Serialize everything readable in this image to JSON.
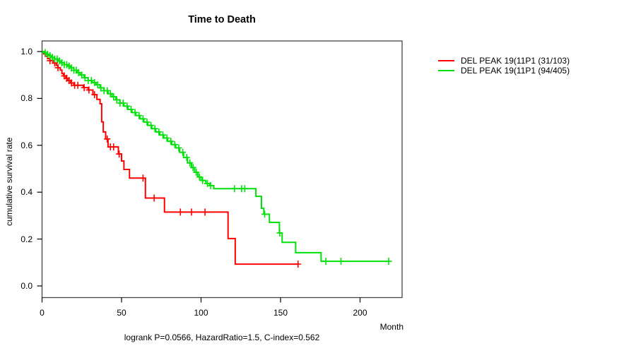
{
  "title": "Time to Death",
  "x_axis": {
    "label": "Month",
    "tick_labels": [
      "0",
      "50",
      "100",
      "150",
      "200"
    ],
    "tick_values": [
      0,
      50,
      100,
      150,
      200
    ]
  },
  "y_axis": {
    "label": "cumulative survival rate",
    "tick_labels": [
      "1.0",
      "0.8",
      "0.6",
      "0.4",
      "0.2",
      "0.0"
    ],
    "tick_values": [
      1.0,
      0.8,
      0.6,
      0.4,
      0.2,
      0.0
    ]
  },
  "annotation": "logrank P=0.0566, HazardRatio=1.5, C-index=0.562",
  "legend": {
    "items": [
      {
        "label": "DEL PEAK 19(11P1 (31/103)",
        "color": "#ff0000"
      },
      {
        "label": "DEL PEAK 19(11P1 (94/405)",
        "color": "#00e10b"
      }
    ]
  },
  "chart_data": {
    "type": "line",
    "subtype": "kaplan-meier-step",
    "title": "Time to Death",
    "xlabel": "Month",
    "ylabel": "cumulative survival rate",
    "xlim": [
      0,
      226.5
    ],
    "ylim": [
      0,
      1.0
    ],
    "grid": false,
    "legend_position": "right-outside",
    "annotation": "logrank P=0.0566, HazardRatio=1.5, C-index=0.562",
    "series": [
      {
        "name": "DEL PEAK 19(11P1 (31/103)",
        "color": "#ff0000",
        "events_total": "31/103",
        "steps": [
          [
            0,
            1.0
          ],
          [
            1,
            0.99
          ],
          [
            2,
            0.98
          ],
          [
            3.5,
            0.97
          ],
          [
            5,
            0.961
          ],
          [
            7,
            0.951
          ],
          [
            9,
            0.941
          ],
          [
            10,
            0.931
          ],
          [
            11.5,
            0.921
          ],
          [
            12.5,
            0.906
          ],
          [
            13.5,
            0.896
          ],
          [
            15,
            0.886
          ],
          [
            16,
            0.876
          ],
          [
            18,
            0.866
          ],
          [
            20,
            0.856
          ],
          [
            26,
            0.846
          ],
          [
            29,
            0.836
          ],
          [
            32,
            0.816
          ],
          [
            34.5,
            0.796
          ],
          [
            36.5,
            0.777
          ],
          [
            37.5,
            0.7
          ],
          [
            38.5,
            0.657
          ],
          [
            40,
            0.627
          ],
          [
            41.5,
            0.593
          ],
          [
            48,
            0.563
          ],
          [
            50,
            0.533
          ],
          [
            51.5,
            0.497
          ],
          [
            55,
            0.46
          ],
          [
            65,
            0.375
          ],
          [
            77,
            0.315
          ],
          [
            117,
            0.202
          ],
          [
            121.5,
            0.093
          ]
        ],
        "end_time": 161.5,
        "censor_times": [
          5,
          8,
          10,
          14,
          15.5,
          17,
          18.5,
          20.5,
          22.5,
          26.5,
          29.5,
          33,
          41,
          43,
          45,
          48.5,
          63.5,
          70.5,
          87,
          94,
          102.5,
          161
        ]
      },
      {
        "name": "DEL PEAK 19(11P1 (94/405)",
        "color": "#00e10b",
        "events_total": "94/405",
        "steps": [
          [
            0,
            1.0
          ],
          [
            1.5,
            0.995
          ],
          [
            3,
            0.988
          ],
          [
            4.5,
            0.982
          ],
          [
            6,
            0.975
          ],
          [
            8,
            0.968
          ],
          [
            10,
            0.96
          ],
          [
            12,
            0.952
          ],
          [
            14,
            0.944
          ],
          [
            16,
            0.938
          ],
          [
            18,
            0.93
          ],
          [
            20,
            0.92
          ],
          [
            22,
            0.91
          ],
          [
            24,
            0.9
          ],
          [
            26.5,
            0.888
          ],
          [
            29,
            0.876
          ],
          [
            31.5,
            0.868
          ],
          [
            34,
            0.858
          ],
          [
            36.5,
            0.845
          ],
          [
            39,
            0.833
          ],
          [
            41.5,
            0.82
          ],
          [
            44,
            0.807
          ],
          [
            46.5,
            0.794
          ],
          [
            49,
            0.78
          ],
          [
            51.5,
            0.767
          ],
          [
            54,
            0.753
          ],
          [
            56.5,
            0.74
          ],
          [
            59,
            0.727
          ],
          [
            61.5,
            0.713
          ],
          [
            64,
            0.699
          ],
          [
            66.5,
            0.685
          ],
          [
            69,
            0.671
          ],
          [
            71.5,
            0.657
          ],
          [
            74,
            0.644
          ],
          [
            76.5,
            0.631
          ],
          [
            79,
            0.617
          ],
          [
            81.5,
            0.603
          ],
          [
            84,
            0.589
          ],
          [
            86.5,
            0.57
          ],
          [
            89,
            0.548
          ],
          [
            91.5,
            0.525
          ],
          [
            94,
            0.505
          ],
          [
            96,
            0.485
          ],
          [
            98,
            0.465
          ],
          [
            100,
            0.45
          ],
          [
            103,
            0.437
          ],
          [
            105.5,
            0.428
          ],
          [
            108,
            0.415
          ],
          [
            134.5,
            0.382
          ],
          [
            138,
            0.331
          ],
          [
            139.5,
            0.306
          ],
          [
            143,
            0.271
          ],
          [
            149.3,
            0.226
          ],
          [
            151,
            0.186
          ],
          [
            159.5,
            0.142
          ],
          [
            175.5,
            0.105
          ]
        ],
        "end_time": 218.5,
        "censor_times": [
          2,
          3.5,
          5,
          6.5,
          8,
          9.5,
          11,
          12.5,
          14,
          15.5,
          17,
          18.5,
          20,
          21.5,
          23,
          25,
          27,
          29,
          31,
          33,
          35,
          37,
          39,
          41,
          43,
          45,
          47,
          49,
          51,
          53.5,
          56,
          58.5,
          61,
          63.5,
          66,
          68.5,
          71,
          73.5,
          76,
          78.5,
          81,
          83.5,
          86,
          88.5,
          91,
          93,
          95,
          97,
          99,
          101,
          104,
          106,
          121,
          125.5,
          127.5,
          140,
          149.5,
          178.5,
          188,
          218
        ]
      }
    ]
  }
}
